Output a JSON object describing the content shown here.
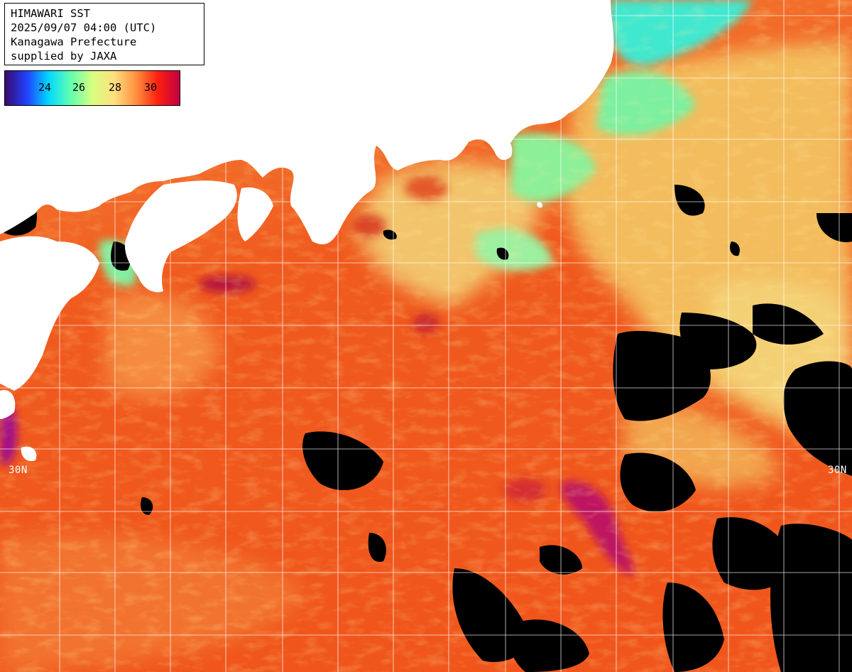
{
  "info": {
    "title": "HIMAWARI SST",
    "datetime": "2025/09/07 04:00 (UTC)",
    "region": "Kanagawa Prefecture",
    "credit": "supplied by JAXA"
  },
  "legend": {
    "labels": [
      "24",
      "26",
      "28",
      "30"
    ],
    "colors": [
      "#3a0a6e",
      "#2040ff",
      "#00d8ff",
      "#60ffb0",
      "#d8ff80",
      "#ffe080",
      "#ff9040",
      "#ff2010",
      "#c00040"
    ]
  },
  "grid": {
    "lat_label_left": "30N",
    "lat_label_right": "30N",
    "line_color": "#ffffff"
  },
  "palette": {
    "land": "#ffffff",
    "cloud": "#000000",
    "warm_sea": "#f05a1e",
    "hot_sea": "#c8102e",
    "cool_sea": "#e8d878",
    "cold_sea": "#5ef0a0"
  }
}
